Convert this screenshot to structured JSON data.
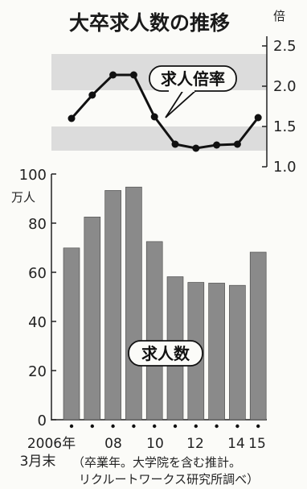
{
  "chart_data": [
    {
      "type": "line",
      "label": "求人倍率",
      "unit": "倍",
      "x": [
        "2006",
        "2007",
        "2008",
        "2009",
        "2010",
        "2011",
        "2012",
        "2013",
        "2014",
        "2015"
      ],
      "values": [
        1.6,
        1.89,
        2.14,
        2.14,
        1.62,
        1.28,
        1.23,
        1.27,
        1.28,
        1.61
      ],
      "ylim": [
        1.0,
        2.5
      ],
      "yticks": [
        "2.5",
        "2.0",
        "1.5",
        "1.0"
      ]
    },
    {
      "type": "bar",
      "label": "求人数",
      "unit": "万人",
      "x": [
        "2006",
        "2007",
        "2008",
        "2009",
        "2010",
        "2011",
        "2012",
        "2013",
        "2014",
        "2015"
      ],
      "values": [
        69.9,
        82.5,
        93.3,
        94.7,
        72.5,
        58.2,
        55.9,
        55.6,
        54.7,
        68.2
      ],
      "ylim": [
        0,
        100
      ],
      "yticks": [
        "100",
        "80",
        "60",
        "40",
        "20",
        "0"
      ]
    }
  ],
  "title": "大卒求人数の推移",
  "x_tick_labels": [
    "2006年",
    "08",
    "10",
    "12",
    "14",
    "15"
  ],
  "x_unit_note": "3月末",
  "note_line1": "（卒業年。大学院を含む推計。",
  "note_line2": "リクルートワークス研究所調べ）",
  "colors": {
    "bar": "#8a8a8a",
    "band": "#dcdcdc",
    "line": "#111111"
  }
}
